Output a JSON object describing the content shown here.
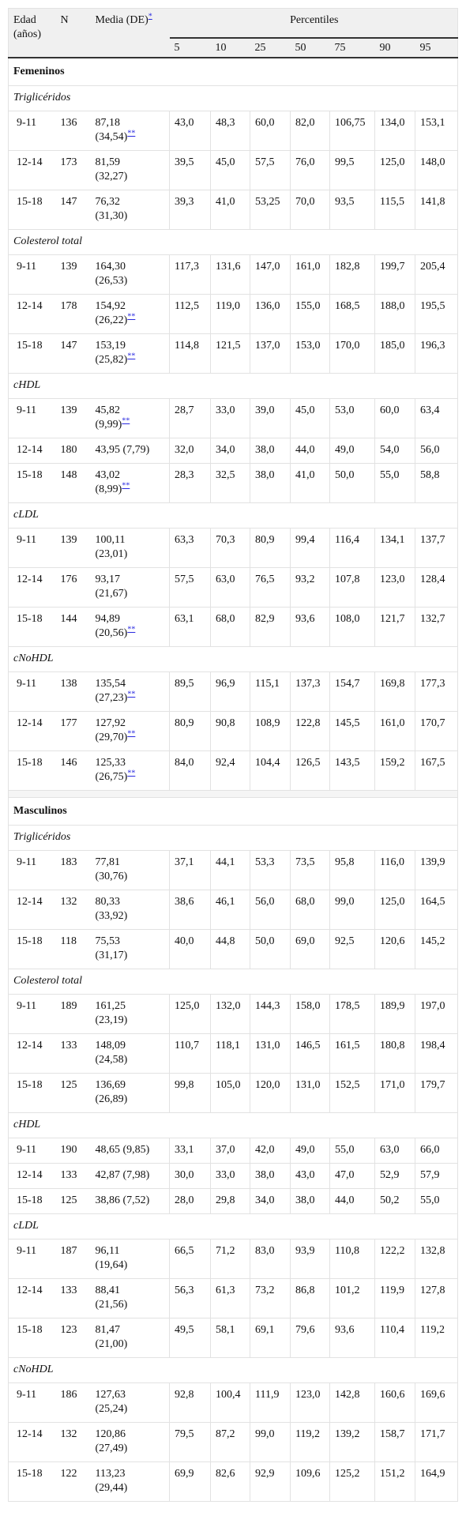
{
  "header": {
    "age": "Edad (años)",
    "n": "N",
    "mean": "Media (DE)",
    "mean_note": "*",
    "percentiles": "Percentiles",
    "levels": [
      5,
      10,
      25,
      50,
      75,
      90,
      95
    ]
  },
  "sections": [
    {
      "title": "Femeninos",
      "groups": [
        {
          "name": "Triglicéridos",
          "rows": [
            {
              "age": "9-11",
              "n": 136,
              "mean": "87,18 (34,54)",
              "note": "**",
              "p": [
                "43,0",
                "48,3",
                "60,0",
                "82,0",
                "106,75",
                "134,0",
                "153,1"
              ]
            },
            {
              "age": "12-14",
              "n": 173,
              "mean": "81,59 (32,27)",
              "p": [
                "39,5",
                "45,0",
                "57,5",
                "76,0",
                "99,5",
                "125,0",
                "148,0"
              ]
            },
            {
              "age": "15-18",
              "n": 147,
              "mean": "76,32 (31,30)",
              "p": [
                "39,3",
                "41,0",
                "53,25",
                "70,0",
                "93,5",
                "115,5",
                "141,8"
              ]
            }
          ]
        },
        {
          "name": "Colesterol total",
          "rows": [
            {
              "age": "9-11",
              "n": 139,
              "mean": "164,30 (26,53)",
              "p": [
                "117,3",
                "131,6",
                "147,0",
                "161,0",
                "182,8",
                "199,7",
                "205,4"
              ]
            },
            {
              "age": "12-14",
              "n": 178,
              "mean": "154,92 (26,22)",
              "note": "**",
              "p": [
                "112,5",
                "119,0",
                "136,0",
                "155,0",
                "168,5",
                "188,0",
                "195,5"
              ]
            },
            {
              "age": "15-18",
              "n": 147,
              "mean": "153,19 (25,82)",
              "note": "**",
              "p": [
                "114,8",
                "121,5",
                "137,0",
                "153,0",
                "170,0",
                "185,0",
                "196,3"
              ]
            }
          ]
        },
        {
          "name": "cHDL",
          "rows": [
            {
              "age": "9-11",
              "n": 139,
              "mean": "45,82 (9,99)",
              "note": "**",
              "p": [
                "28,7",
                "33,0",
                "39,0",
                "45,0",
                "53,0",
                "60,0",
                "63,4"
              ]
            },
            {
              "age": "12-14",
              "n": 180,
              "mean": "43,95 (7,79)",
              "p": [
                "32,0",
                "34,0",
                "38,0",
                "44,0",
                "49,0",
                "54,0",
                "56,0"
              ]
            },
            {
              "age": "15-18",
              "n": 148,
              "mean": "43,02 (8,99)",
              "note": "**",
              "p": [
                "28,3",
                "32,5",
                "38,0",
                "41,0",
                "50,0",
                "55,0",
                "58,8"
              ]
            }
          ]
        },
        {
          "name": "cLDL",
          "rows": [
            {
              "age": "9-11",
              "n": 139,
              "mean": "100,11 (23,01)",
              "p": [
                "63,3",
                "70,3",
                "80,9",
                "99,4",
                "116,4",
                "134,1",
                "137,7"
              ]
            },
            {
              "age": "12-14",
              "n": 176,
              "mean": "93,17 (21,67)",
              "p": [
                "57,5",
                "63,0",
                "76,5",
                "93,2",
                "107,8",
                "123,0",
                "128,4"
              ]
            },
            {
              "age": "15-18",
              "n": 144,
              "mean": "94,89 (20,56)",
              "note": "**",
              "p": [
                "63,1",
                "68,0",
                "82,9",
                "93,6",
                "108,0",
                "121,7",
                "132,7"
              ]
            }
          ]
        },
        {
          "name": "cNoHDL",
          "rows": [
            {
              "age": "9-11",
              "n": 138,
              "mean": "135,54 (27,23)",
              "note": "**",
              "p": [
                "89,5",
                "96,9",
                "115,1",
                "137,3",
                "154,7",
                "169,8",
                "177,3"
              ]
            },
            {
              "age": "12-14",
              "n": 177,
              "mean": "127,92 (29,70)",
              "note": "**",
              "p": [
                "80,9",
                "90,8",
                "108,9",
                "122,8",
                "145,5",
                "161,0",
                "170,7"
              ]
            },
            {
              "age": "15-18",
              "n": 146,
              "mean": "125,33 (26,75)",
              "note": "**",
              "p": [
                "84,0",
                "92,4",
                "104,4",
                "126,5",
                "143,5",
                "159,2",
                "167,5"
              ]
            }
          ]
        }
      ]
    },
    {
      "title": "Masculinos",
      "groups": [
        {
          "name": "Triglicéridos",
          "rows": [
            {
              "age": "9-11",
              "n": 183,
              "mean": "77,81 (30,76)",
              "p": [
                "37,1",
                "44,1",
                "53,3",
                "73,5",
                "95,8",
                "116,0",
                "139,9"
              ]
            },
            {
              "age": "12-14",
              "n": 132,
              "mean": "80,33 (33,92)",
              "p": [
                "38,6",
                "46,1",
                "56,0",
                "68,0",
                "99,0",
                "125,0",
                "164,5"
              ]
            },
            {
              "age": "15-18",
              "n": 118,
              "mean": "75,53 (31,17)",
              "p": [
                "40,0",
                "44,8",
                "50,0",
                "69,0",
                "92,5",
                "120,6",
                "145,2"
              ]
            }
          ]
        },
        {
          "name": "Colesterol total",
          "rows": [
            {
              "age": "9-11",
              "n": 189,
              "mean": "161,25 (23,19)",
              "p": [
                "125,0",
                "132,0",
                "144,3",
                "158,0",
                "178,5",
                "189,9",
                "197,0"
              ]
            },
            {
              "age": "12-14",
              "n": 133,
              "mean": "148,09 (24,58)",
              "p": [
                "110,7",
                "118,1",
                "131,0",
                "146,5",
                "161,5",
                "180,8",
                "198,4"
              ]
            },
            {
              "age": "15-18",
              "n": 125,
              "mean": "136,69 (26,89)",
              "p": [
                "99,8",
                "105,0",
                "120,0",
                "131,0",
                "152,5",
                "171,0",
                "179,7"
              ]
            }
          ]
        },
        {
          "name": "cHDL",
          "rows": [
            {
              "age": "9-11",
              "n": 190,
              "mean": "48,65 (9,85)",
              "p": [
                "33,1",
                "37,0",
                "42,0",
                "49,0",
                "55,0",
                "63,0",
                "66,0"
              ]
            },
            {
              "age": "12-14",
              "n": 133,
              "mean": "42,87 (7,98)",
              "p": [
                "30,0",
                "33,0",
                "38,0",
                "43,0",
                "47,0",
                "52,9",
                "57,9"
              ]
            },
            {
              "age": "15-18",
              "n": 125,
              "mean": "38,86 (7,52)",
              "p": [
                "28,0",
                "29,8",
                "34,0",
                "38,0",
                "44,0",
                "50,2",
                "55,0"
              ]
            }
          ]
        },
        {
          "name": "cLDL",
          "rows": [
            {
              "age": "9-11",
              "n": 187,
              "mean": "96,11 (19,64)",
              "p": [
                "66,5",
                "71,2",
                "83,0",
                "93,9",
                "110,8",
                "122,2",
                "132,8"
              ]
            },
            {
              "age": "12-14",
              "n": 133,
              "mean": "88,41 (21,56)",
              "p": [
                "56,3",
                "61,3",
                "73,2",
                "86,8",
                "101,2",
                "119,9",
                "127,8"
              ]
            },
            {
              "age": "15-18",
              "n": 123,
              "mean": "81,47 (21,00)",
              "p": [
                "49,5",
                "58,1",
                "69,1",
                "79,6",
                "93,6",
                "110,4",
                "119,2"
              ]
            }
          ]
        },
        {
          "name": "cNoHDL",
          "rows": [
            {
              "age": "9-11",
              "n": 186,
              "mean": "127,63 (25,24)",
              "p": [
                "92,8",
                "100,4",
                "111,9",
                "123,0",
                "142,8",
                "160,6",
                "169,6"
              ]
            },
            {
              "age": "12-14",
              "n": 132,
              "mean": "120,86 (27,49)",
              "p": [
                "79,5",
                "87,2",
                "99,0",
                "119,2",
                "139,2",
                "158,7",
                "171,7"
              ]
            },
            {
              "age": "15-18",
              "n": 122,
              "mean": "113,23 (29,44)",
              "p": [
                "69,9",
                "82,6",
                "92,9",
                "109,6",
                "125,2",
                "151,2",
                "164,9"
              ]
            }
          ]
        }
      ]
    }
  ]
}
